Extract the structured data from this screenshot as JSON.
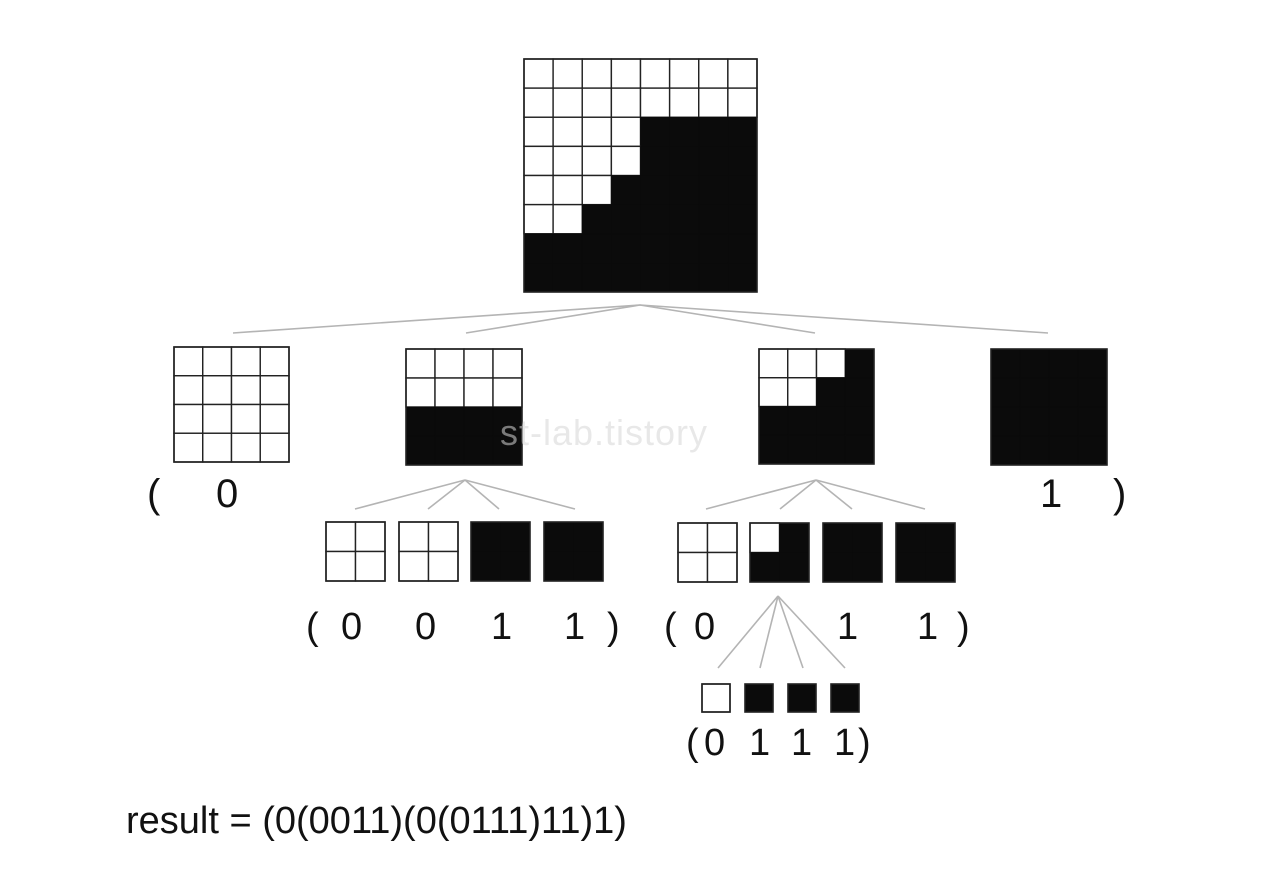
{
  "watermark": "st-lab.tistory",
  "levels": {
    "root": {
      "grid": [
        "00000000",
        "00000000",
        "00001111",
        "00001111",
        "00011111",
        "00111111",
        "11111111",
        "11111111"
      ]
    },
    "level1": [
      {
        "grid": [
          "0000",
          "0000",
          "0000",
          "0000"
        ],
        "label": "0"
      },
      {
        "grid": [
          "0000",
          "0000",
          "1111",
          "1111"
        ]
      },
      {
        "grid": [
          "0001",
          "0011",
          "1111",
          "1111"
        ]
      },
      {
        "grid": [
          "1111",
          "1111",
          "1111",
          "1111"
        ],
        "label": "1"
      }
    ],
    "level2_left": [
      {
        "grid": [
          "00",
          "00"
        ],
        "label": "0"
      },
      {
        "grid": [
          "00",
          "00"
        ],
        "label": "0"
      },
      {
        "grid": [
          "11",
          "11"
        ],
        "label": "1"
      },
      {
        "grid": [
          "11",
          "11"
        ],
        "label": "1"
      }
    ],
    "level2_right": [
      {
        "grid": [
          "00",
          "00"
        ],
        "label": "0"
      },
      {
        "grid": [
          "01",
          "11"
        ]
      },
      {
        "grid": [
          "11",
          "11"
        ],
        "label": "1"
      },
      {
        "grid": [
          "11",
          "11"
        ],
        "label": "1"
      }
    ],
    "level3": [
      {
        "grid": [
          "0"
        ],
        "label": "0"
      },
      {
        "grid": [
          "1"
        ],
        "label": "1"
      },
      {
        "grid": [
          "1"
        ],
        "label": "1"
      },
      {
        "grid": [
          "1"
        ],
        "label": "1"
      }
    ]
  },
  "brackets": {
    "open": "(",
    "close": ")"
  },
  "result_text": "result = (0(0011)(0(0111)11)1)"
}
